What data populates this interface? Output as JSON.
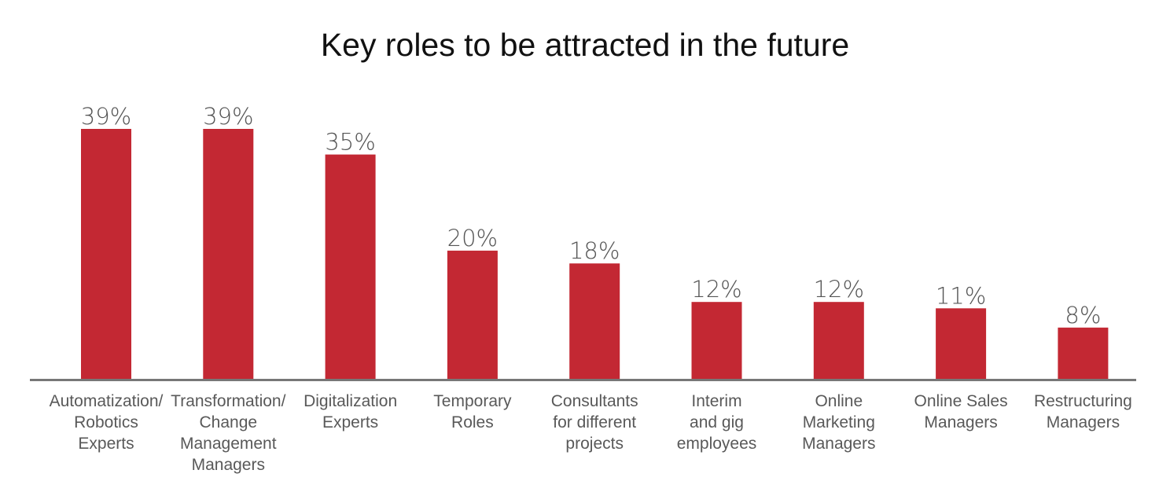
{
  "chart_data": {
    "type": "bar",
    "title": "Key roles to be attracted in the future",
    "categories": [
      [
        "Automatization/",
        "Robotics",
        "Experts"
      ],
      [
        "Transformation/",
        "Change",
        "Management",
        "Managers"
      ],
      [
        "Digitalization",
        "Experts"
      ],
      [
        "Temporary",
        "Roles"
      ],
      [
        "Consultants",
        "for different",
        "projects"
      ],
      [
        "Interim",
        "and gig",
        "employees"
      ],
      [
        "Online",
        "Marketing",
        "Managers"
      ],
      [
        "Online Sales",
        "Managers"
      ],
      [
        "Restructuring",
        "Managers"
      ]
    ],
    "values": [
      39,
      39,
      35,
      20,
      18,
      12,
      12,
      11,
      8
    ],
    "value_labels": [
      "39%",
      "39%",
      "35%",
      "20%",
      "18%",
      "12%",
      "12%",
      "11%",
      "8%"
    ],
    "ylim": [
      0,
      40
    ],
    "grid": false,
    "legend": "none",
    "colors": {
      "bar": "#c32833",
      "axis": "#777777",
      "value_text": "#555555",
      "category_text": "#595959"
    }
  }
}
